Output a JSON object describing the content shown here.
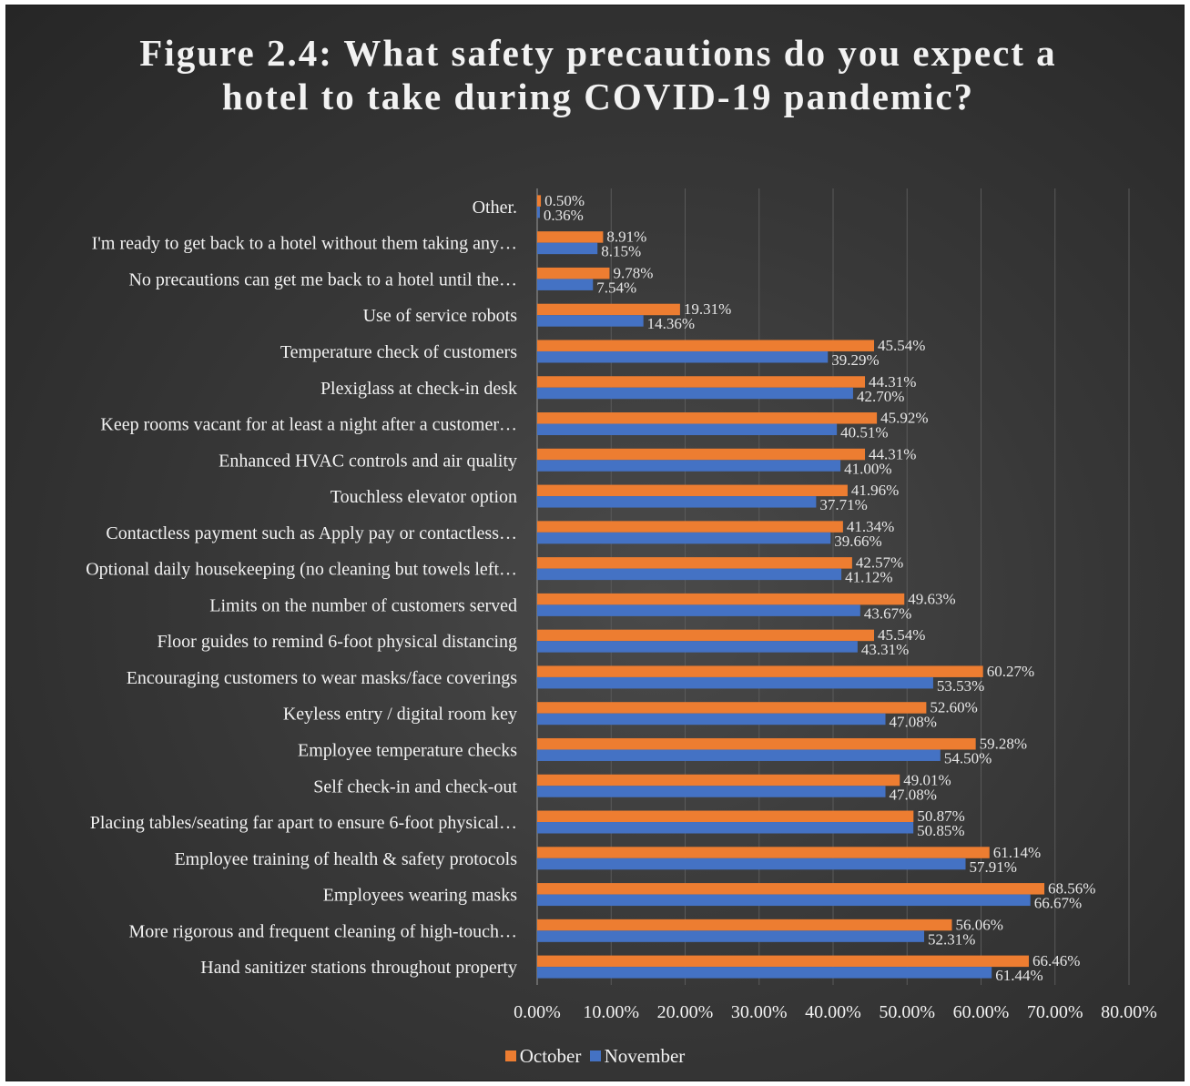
{
  "colors": {
    "october": "#ed7d31",
    "november": "#4472c4"
  },
  "chart_data": {
    "type": "bar",
    "orientation": "horizontal",
    "title": "Figure 2.4: What safety precautions do you expect a hotel to take during COVID-19 pandemic?",
    "xlim": [
      0,
      80
    ],
    "x_ticks": [
      "0.00%",
      "10.00%",
      "20.00%",
      "30.00%",
      "40.00%",
      "50.00%",
      "60.00%",
      "70.00%",
      "80.00%"
    ],
    "grid": true,
    "legend_position": "bottom",
    "categories": [
      "Other.",
      "I'm ready to get back to a hotel without them taking any…",
      "No precautions can get me back to a hotel until the…",
      "Use of service robots",
      "Temperature check of customers",
      "Plexiglass at check-in desk",
      "Keep rooms vacant for at least a night after a customer…",
      "Enhanced HVAC controls and air quality",
      "Touchless elevator option",
      "Contactless payment such as Apply pay or contactless…",
      "Optional daily housekeeping (no cleaning but towels left…",
      "Limits on the number of customers served",
      "Floor guides to remind 6-foot physical distancing",
      "Encouraging customers to wear masks/face coverings",
      "Keyless entry / digital room key",
      "Employee temperature checks",
      "Self check-in and check-out",
      "Placing tables/seating far apart to ensure 6-foot physical…",
      "Employee training of health & safety protocols",
      "Employees wearing masks",
      "More rigorous and frequent cleaning of high-touch…",
      "Hand sanitizer stations throughout property"
    ],
    "series": [
      {
        "name": "October",
        "values": [
          0.5,
          8.91,
          9.78,
          19.31,
          45.54,
          44.31,
          45.92,
          44.31,
          41.96,
          41.34,
          42.57,
          49.63,
          45.54,
          60.27,
          52.6,
          59.28,
          49.01,
          50.87,
          61.14,
          68.56,
          56.06,
          66.46
        ],
        "labels": [
          "0.50%",
          "8.91%",
          "9.78%",
          "19.31%",
          "45.54%",
          "44.31%",
          "45.92%",
          "44.31%",
          "41.96%",
          "41.34%",
          "42.57%",
          "49.63%",
          "45.54%",
          "60.27%",
          "52.60%",
          "59.28%",
          "49.01%",
          "50.87%",
          "61.14%",
          "68.56%",
          "56.06%",
          "66.46%"
        ]
      },
      {
        "name": "November",
        "values": [
          0.36,
          8.15,
          7.54,
          14.36,
          39.29,
          42.7,
          40.51,
          41.0,
          37.71,
          39.66,
          41.12,
          43.67,
          43.31,
          53.53,
          47.08,
          54.5,
          47.08,
          50.85,
          57.91,
          66.67,
          52.31,
          61.44
        ],
        "labels": [
          "0.36%",
          "8.15%",
          "7.54%",
          "14.36%",
          "39.29%",
          "42.70%",
          "40.51%",
          "41.00%",
          "37.71%",
          "39.66%",
          "41.12%",
          "43.67%",
          "43.31%",
          "53.53%",
          "47.08%",
          "54.50%",
          "47.08%",
          "50.85%",
          "57.91%",
          "66.67%",
          "52.31%",
          "61.44%"
        ]
      }
    ]
  }
}
